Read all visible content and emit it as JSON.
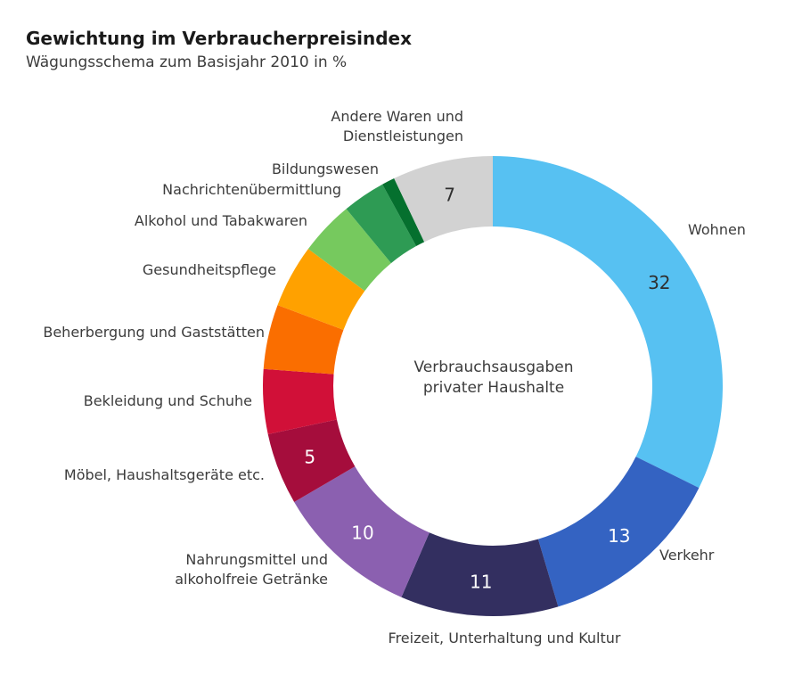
{
  "chart_data": {
    "type": "pie",
    "subtype": "donut",
    "title": "Gewichtung im Verbraucherpreisindex",
    "subtitle": "Wägungsschema zum Basisjahr 2010 in %",
    "unit": "%",
    "total": 100,
    "legend_position": "labels-around-ring",
    "center_label": [
      "Verbrauchsausgaben",
      "privater Haushalte"
    ],
    "start_angle_deg": 0,
    "direction": "clockwise",
    "slices": [
      {
        "label": "Wohnen",
        "value": 32,
        "value_shown": "32",
        "color": "#57C1F2",
        "value_text_color": "#2f2f2f"
      },
      {
        "label": "Verkehr",
        "value": 13,
        "value_shown": "13",
        "color": "#3463C2",
        "value_text_color": "#ffffff"
      },
      {
        "label": "Freizeit, Unterhaltung und Kultur",
        "value": 11,
        "value_shown": "11",
        "color": "#332F60",
        "value_text_color": "#ffffff"
      },
      {
        "label": "Nahrungsmittel und\nalkoholfreie Getränke",
        "value": 10,
        "value_shown": "10",
        "color": "#8B60B0",
        "value_text_color": "#ffffff"
      },
      {
        "label": "Möbel, Haushaltsgeräte etc.",
        "value": 5,
        "value_shown": "5",
        "color": "#A50D3C",
        "value_text_color": "#ffffff"
      },
      {
        "label": "Bekleidung und Schuhe",
        "value": 4.5,
        "value_shown": null,
        "color": "#D11038"
      },
      {
        "label": "Beherbergung und Gaststätten",
        "value": 4.5,
        "value_shown": null,
        "color": "#FA6E00"
      },
      {
        "label": "Gesundheitspflege",
        "value": 4.4,
        "value_shown": null,
        "color": "#FFA100"
      },
      {
        "label": "Alkohol und Tabakwaren",
        "value": 3.8,
        "value_shown": null,
        "color": "#76C95E"
      },
      {
        "label": "Nachrichtenübermittlung",
        "value": 3.0,
        "value_shown": null,
        "color": "#2E9B54"
      },
      {
        "label": "Bildungswesen",
        "value": 0.9,
        "value_shown": null,
        "color": "#05702E"
      },
      {
        "label": "Andere Waren und\nDienstleistungen",
        "value": 7,
        "value_shown": "7",
        "color": "#D2D2D2",
        "value_text_color": "#2f2f2f"
      }
    ]
  }
}
